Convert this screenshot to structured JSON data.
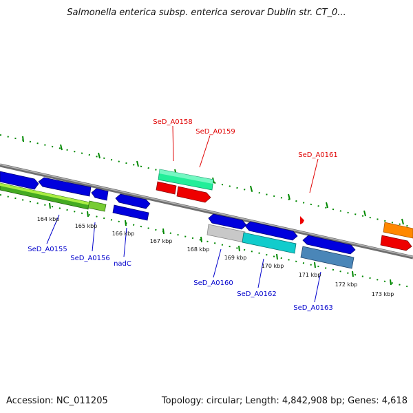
{
  "title": "Salmonella enterica subsp. enterica serovar Dublin str. CT_0...",
  "footer": {
    "accession": "Accession: NC_011205",
    "summary": "Topology: circular; Length: 4,842,908 bp; Genes: 4,618"
  },
  "scale_labels": [
    "164 kbp",
    "165 kbp",
    "166 kbp",
    "167 kbp",
    "168 kbp",
    "169 kbp",
    "170 kbp",
    "171 kbp",
    "172 kbp",
    "173 kbp"
  ],
  "gene_labels": {
    "above": [
      "SeD_A0158",
      "SeD_A0159",
      "SeD_A0161"
    ],
    "below": [
      "SeD_A0155",
      "SeD_A0156",
      "nadC",
      "SeD_A0160",
      "SeD_A0162",
      "SeD_A0163"
    ]
  },
  "colors": {
    "backbone": "#808080",
    "cds_blue": "#0000dd",
    "rna_red": "#ee0000",
    "green_track": "#44aa22",
    "lime_track": "#99ee33",
    "teal_track": "#22eeaa",
    "cyan_track": "#11cccc",
    "steel_track": "#4488bb",
    "gray_track": "#bbbbbb",
    "orange_track": "#ff8800",
    "tick_green": "#008800"
  }
}
